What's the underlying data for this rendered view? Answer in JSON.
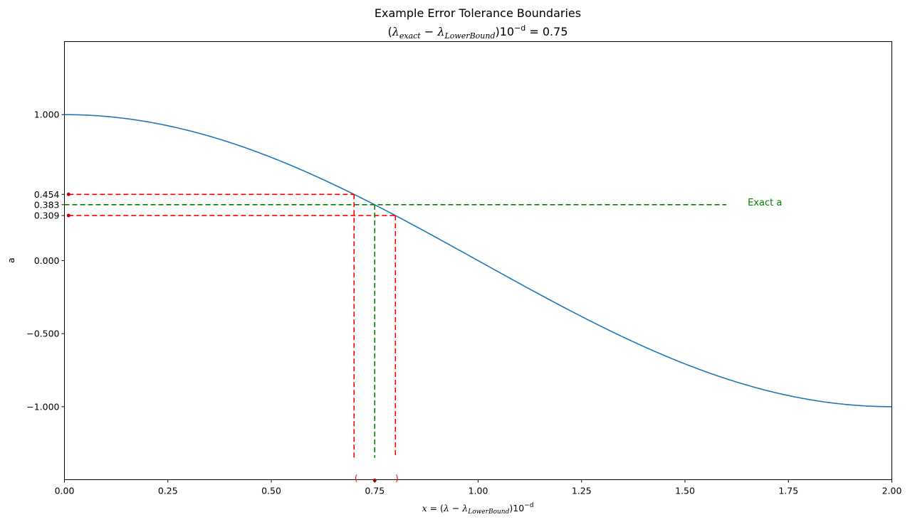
{
  "chart_data": {
    "type": "line",
    "title": "Example Error Tolerance Boundaries",
    "subtitle": {
      "paren_open": "(",
      "lambda": "λ",
      "sub_exact": "exact",
      "minus": " − ",
      "sub_lower": "LowerBound",
      "paren_close": ")",
      "ten": "10",
      "exp": "−d",
      "equals": " = 0.75"
    },
    "xlabel": {
      "x": "x",
      "equals": " = (",
      "lambda": "λ",
      "minus": " − ",
      "sub_lower": "LowerBound",
      "paren_close": ")",
      "ten": "10",
      "exp": "−d"
    },
    "ylabel": "a",
    "xlim": [
      0,
      2
    ],
    "ylim": [
      -1.5,
      1.5
    ],
    "grid": false,
    "x_ticks": [
      {
        "value": 0,
        "label": "0.00"
      },
      {
        "value": 0.25,
        "label": "0.25"
      },
      {
        "value": 0.5,
        "label": "0.50"
      },
      {
        "value": 0.75,
        "label": "0.75"
      },
      {
        "value": 1.0,
        "label": "1.00"
      },
      {
        "value": 1.25,
        "label": "1.25"
      },
      {
        "value": 1.5,
        "label": "1.50"
      },
      {
        "value": 1.75,
        "label": "1.75"
      },
      {
        "value": 2.0,
        "label": "2.00"
      }
    ],
    "y_ticks": [
      {
        "value": 1.0,
        "label": "1.000"
      },
      {
        "value": 0.454,
        "label": "0.454"
      },
      {
        "value": 0.383,
        "label": "0.383"
      },
      {
        "value": 0.309,
        "label": "0.309"
      },
      {
        "value": 0.0,
        "label": "0.000"
      },
      {
        "value": -0.5,
        "label": "−0.500"
      },
      {
        "value": -1.0,
        "label": "−1.000"
      }
    ],
    "curve": {
      "function": "cos(pi*x/2)",
      "x_range": [
        0,
        2
      ],
      "color": "#1f77b4"
    },
    "exact": {
      "x": 0.75,
      "a": 0.383,
      "label": "Exact a",
      "line_end_x": 1.6,
      "color": "#008000"
    },
    "bounds": {
      "lower_x": 0.7,
      "upper_x": 0.8,
      "a_at_lower": 0.454,
      "a_at_upper": 0.309,
      "color": "#ff0000",
      "dot_color": "#cc0000",
      "open_label": "(",
      "close_label": ")"
    },
    "vertical_lines_bottom": -1.35,
    "marker_y": -1.49,
    "left_dot_x": 0.01
  }
}
